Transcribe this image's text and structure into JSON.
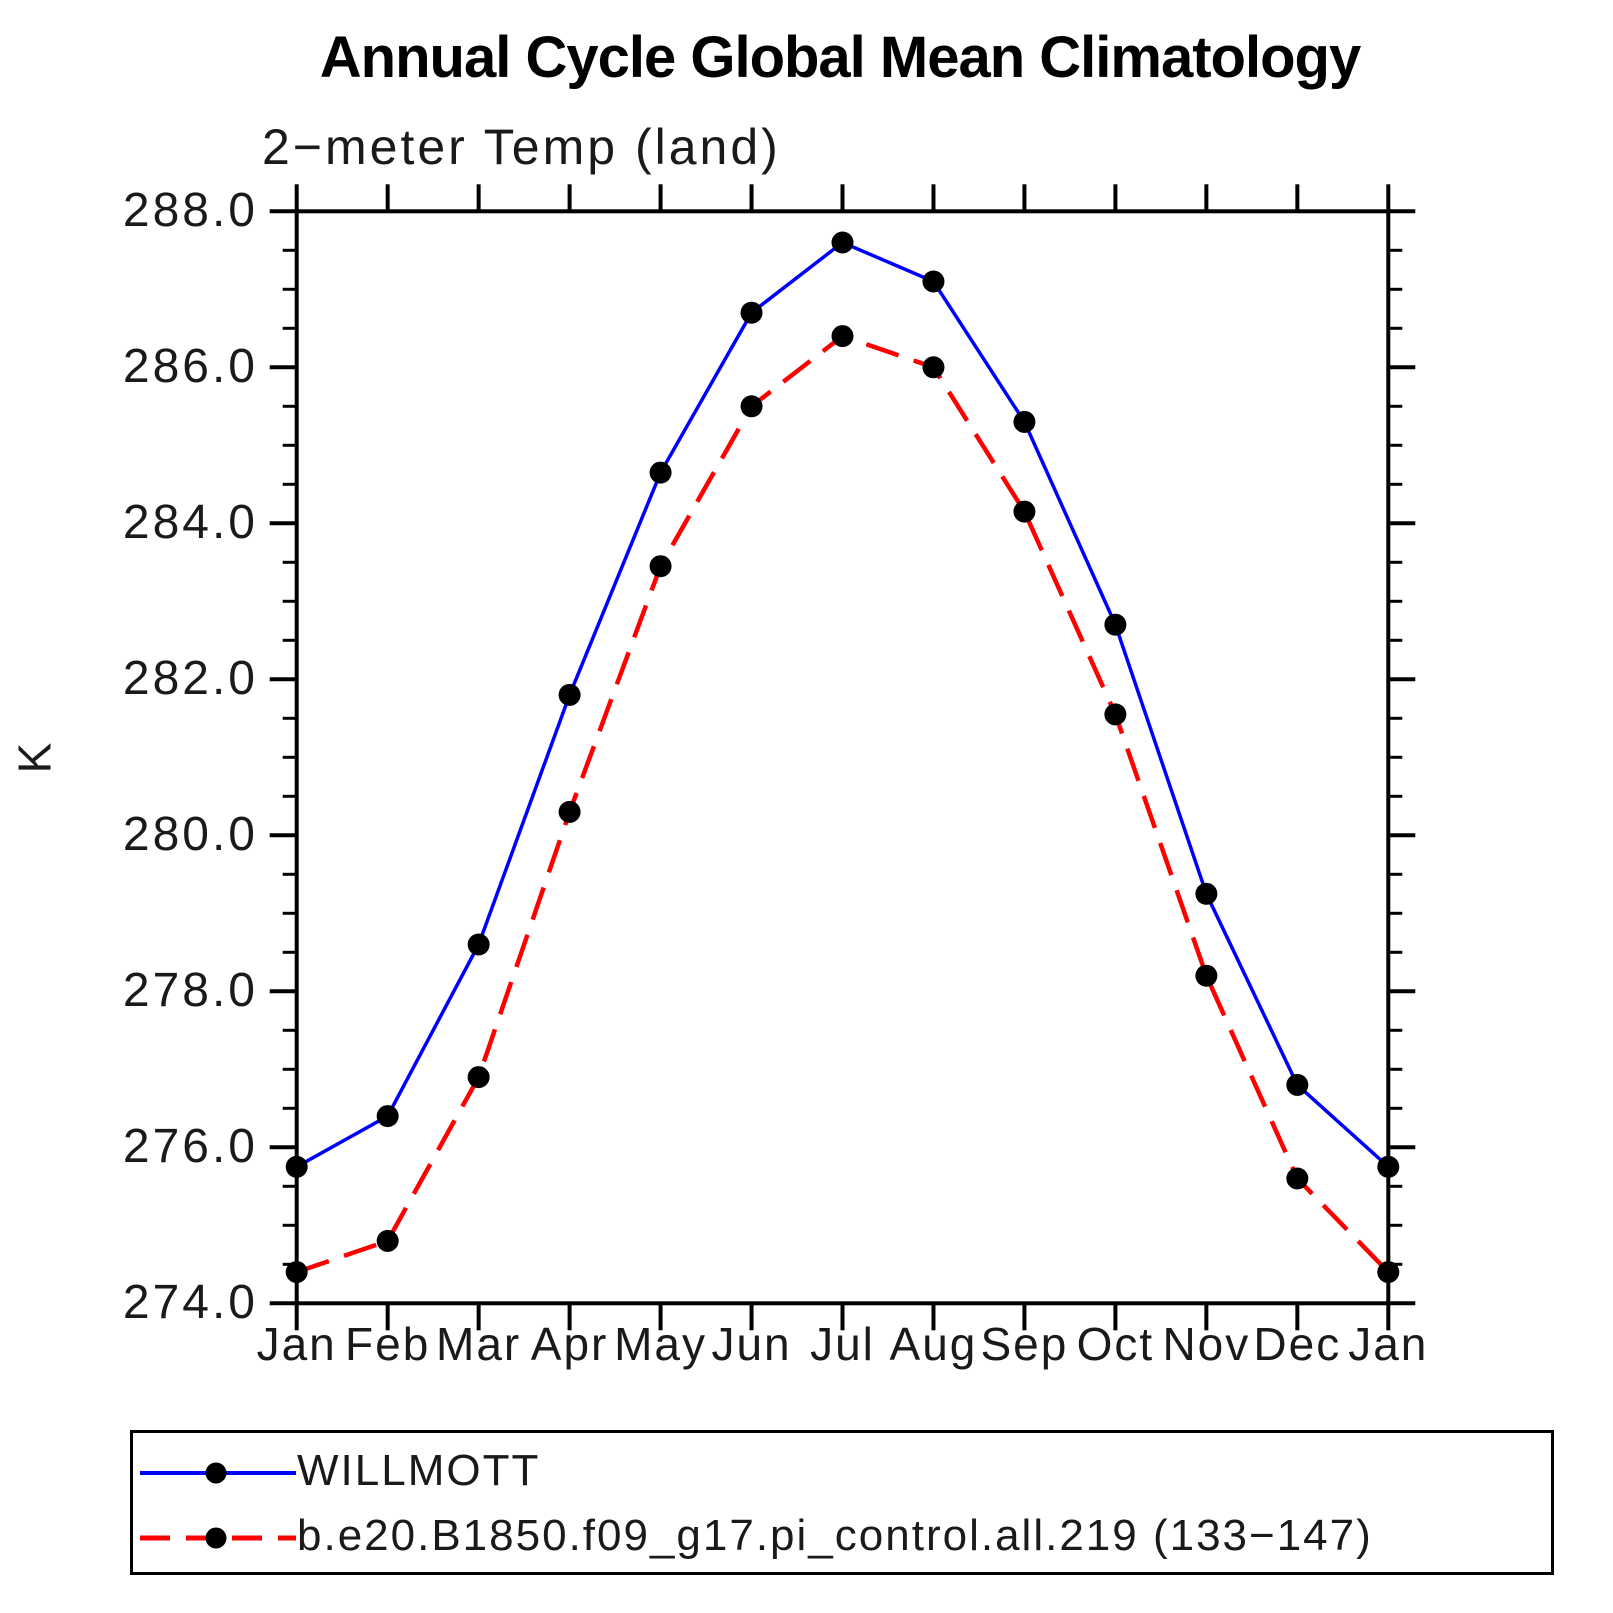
{
  "chart_data": {
    "type": "line",
    "title": "Annual Cycle Global Mean Climatology",
    "subtitle": "2−meter Temp (land)",
    "ylabel": "K",
    "xlabel": "",
    "categories": [
      "Jan",
      "Feb",
      "Mar",
      "Apr",
      "May",
      "Jun",
      "Jul",
      "Aug",
      "Sep",
      "Oct",
      "Nov",
      "Dec",
      "Jan"
    ],
    "ylim": [
      274.0,
      288.0
    ],
    "ytick_step": 2.0,
    "ytick_minor_step": 0.5,
    "ytick_labels": [
      "274.0",
      "276.0",
      "278.0",
      "280.0",
      "282.0",
      "284.0",
      "286.0",
      "288.0"
    ],
    "grid": false,
    "legend_position": "bottom",
    "frame_color": "#000000",
    "marker_color": "#000000",
    "series": [
      {
        "name": "WILLMOTT",
        "color": "#0000ff",
        "style": "solid",
        "marker": "filled-circle",
        "values": [
          275.75,
          276.4,
          278.6,
          281.8,
          284.65,
          286.7,
          287.6,
          287.1,
          285.3,
          282.7,
          279.25,
          276.8,
          275.75
        ]
      },
      {
        "name": "b.e20.B1850.f09_g17.pi_control.all.219 (133−147)",
        "color": "#ff0000",
        "style": "dashed",
        "marker": "filled-circle",
        "values": [
          274.4,
          274.8,
          276.9,
          280.3,
          283.45,
          285.5,
          286.4,
          286.0,
          284.15,
          281.55,
          278.2,
          275.6,
          274.4
        ]
      }
    ]
  }
}
